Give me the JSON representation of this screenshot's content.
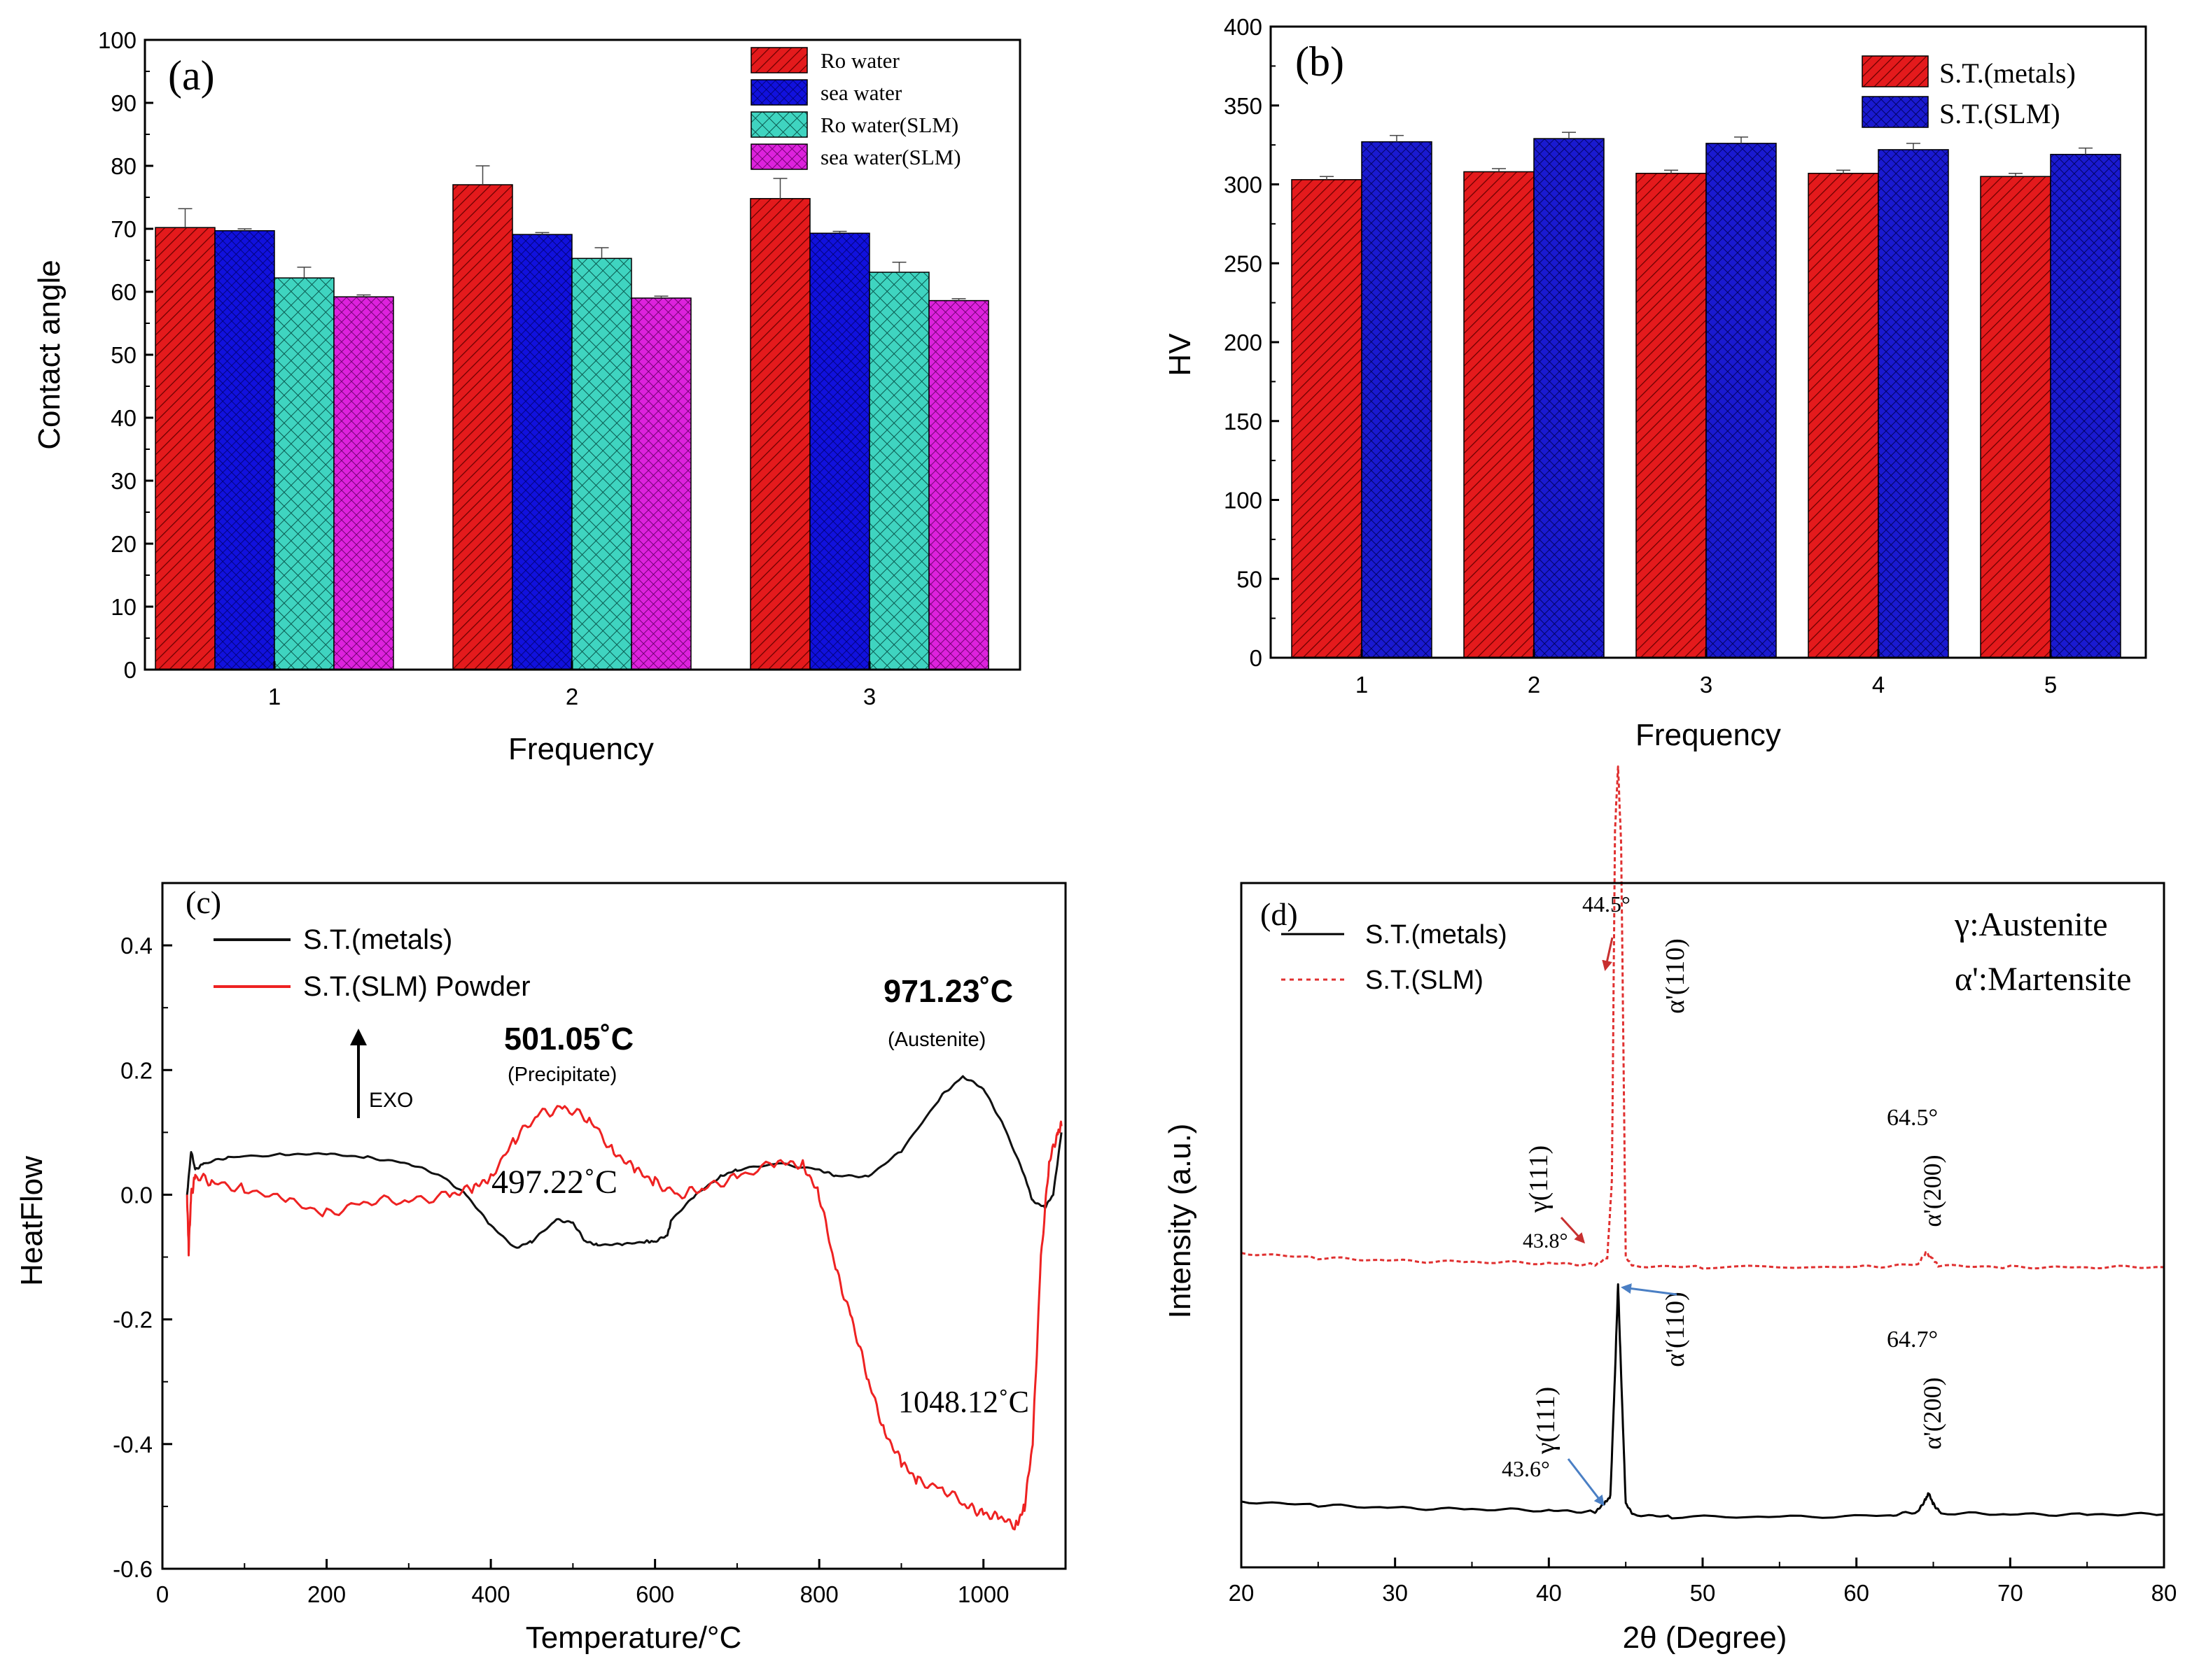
{
  "colors": {
    "red": "#e41a1c",
    "blue": "#1111dd",
    "teal": "#3fd4c0",
    "magenta": "#dd22dd",
    "dsc_black": "#111111",
    "dsc_red": "#ee2222",
    "xrd_metals": "#000000",
    "xrd_slm": "#e03030",
    "arrow_red": "#c83030",
    "arrow_blue": "#4a7fc4"
  },
  "chart_data": [
    {
      "id": "a",
      "type": "bar",
      "panel_label": "(a)",
      "title": "",
      "xlabel": "Frequency",
      "ylabel": "Contact angle",
      "ylim": [
        0,
        100
      ],
      "yticks": [
        "0",
        "10",
        "20",
        "30",
        "40",
        "50",
        "60",
        "70",
        "80",
        "90",
        "100"
      ],
      "categories": [
        "1",
        "2",
        "3"
      ],
      "legend_position": "top-right",
      "series": [
        {
          "name": "Ro water",
          "values": [
            70.2,
            77.0,
            74.8
          ],
          "errors": [
            3.0,
            3.0,
            3.2
          ]
        },
        {
          "name": "sea water",
          "values": [
            69.7,
            69.1,
            69.3
          ],
          "errors": [
            0.3,
            0.3,
            0.3
          ]
        },
        {
          "name": "Ro water(SLM)",
          "values": [
            62.2,
            65.3,
            63.1
          ],
          "errors": [
            1.7,
            1.7,
            1.6
          ]
        },
        {
          "name": "sea water(SLM)",
          "values": [
            59.2,
            59.0,
            58.6
          ],
          "errors": [
            0.3,
            0.3,
            0.3
          ]
        }
      ]
    },
    {
      "id": "b",
      "type": "bar",
      "panel_label": "(b)",
      "title": "",
      "xlabel": "Frequency",
      "ylabel": "HV",
      "ylim": [
        0,
        400
      ],
      "yticks": [
        "0",
        "50",
        "100",
        "150",
        "200",
        "250",
        "300",
        "350",
        "400"
      ],
      "categories": [
        "1",
        "2",
        "3",
        "4",
        "5"
      ],
      "legend_position": "top-right",
      "series": [
        {
          "name": "S.T.(metals)",
          "values": [
            303,
            308,
            307,
            307,
            305
          ],
          "errors": [
            2,
            2,
            2,
            2,
            2
          ]
        },
        {
          "name": "S.T.(SLM)",
          "values": [
            327,
            329,
            326,
            322,
            319
          ],
          "errors": [
            4,
            4,
            4,
            4,
            4
          ]
        }
      ]
    },
    {
      "id": "c",
      "type": "line",
      "panel_label": "(c)",
      "title": "",
      "xlabel": "Temperature/°C",
      "ylabel": "HeatFlow",
      "xlim": [
        0,
        1100
      ],
      "ylim": [
        -0.6,
        0.5
      ],
      "xticks": [
        "0",
        "200",
        "400",
        "600",
        "800",
        "1000"
      ],
      "yticks": [
        "-0.6",
        "-0.4",
        "-0.2",
        "0.0",
        "0.2",
        "0.4"
      ],
      "legend_position": "top-left",
      "series": [
        {
          "name": "S.T.(metals)",
          "x": [
            30,
            35,
            40,
            50,
            80,
            150,
            200,
            250,
            300,
            340,
            370,
            400,
            430,
            450,
            480,
            500,
            515,
            530,
            560,
            590,
            600,
            615,
            620,
            650,
            680,
            700,
            750,
            800,
            820,
            860,
            900,
            950,
            975,
            1000,
            1025,
            1050,
            1060,
            1075,
            1085,
            1095
          ],
          "y": [
            0.0,
            0.07,
            0.04,
            0.05,
            0.06,
            0.065,
            0.065,
            0.06,
            0.05,
            0.03,
            0.0,
            -0.05,
            -0.085,
            -0.075,
            -0.04,
            -0.045,
            -0.075,
            -0.08,
            -0.08,
            -0.075,
            -0.075,
            -0.065,
            -0.04,
            0.0,
            0.03,
            0.04,
            0.05,
            0.04,
            0.03,
            0.03,
            0.07,
            0.16,
            0.19,
            0.17,
            0.11,
            0.03,
            -0.01,
            -0.02,
            0.0,
            0.1
          ]
        },
        {
          "name": "S.T.(SLM) Powder",
          "x": [
            30,
            32,
            35,
            40,
            60,
            100,
            150,
            200,
            250,
            300,
            350,
            380,
            400,
            430,
            460,
            490,
            520,
            550,
            575,
            600,
            630,
            660,
            700,
            750,
            780,
            800,
            820,
            840,
            860,
            880,
            900,
            920,
            950,
            980,
            1000,
            1020,
            1040,
            1050,
            1060,
            1070,
            1080,
            1090,
            1095
          ],
          "y": [
            0.0,
            -0.09,
            0.0,
            0.03,
            0.02,
            0.01,
            -0.01,
            -0.03,
            -0.01,
            -0.01,
            0.0,
            0.01,
            0.03,
            0.09,
            0.13,
            0.14,
            0.12,
            0.07,
            0.04,
            0.02,
            0.0,
            0.01,
            0.03,
            0.05,
            0.05,
            0.0,
            -0.12,
            -0.2,
            -0.3,
            -0.38,
            -0.43,
            -0.46,
            -0.47,
            -0.5,
            -0.51,
            -0.52,
            -0.53,
            -0.5,
            -0.4,
            -0.1,
            0.05,
            0.1,
            0.11
          ]
        }
      ],
      "annotations": [
        {
          "text": "501.05˚C",
          "sub": "(Precipitate)"
        },
        {
          "text": "971.23˚C",
          "sub": "(Austenite)"
        },
        {
          "text": "497.22˚C"
        },
        {
          "text": "1048.12˚C"
        },
        {
          "text": "EXO"
        }
      ]
    },
    {
      "id": "d",
      "type": "line",
      "panel_label": "(d)",
      "title": "",
      "xlabel": "2θ (Degree)",
      "ylabel": "Intensity (a.u.)",
      "xlim": [
        20,
        80
      ],
      "xticks": [
        "20",
        "30",
        "40",
        "50",
        "60",
        "70",
        "80"
      ],
      "legend_position": "top-left",
      "phase_legend": [
        "γ:Austenite",
        "α':Martensite"
      ],
      "series": [
        {
          "name": "S.T.(metals)",
          "x": [
            20,
            25,
            30,
            35,
            40,
            43.0,
            43.6,
            44.0,
            44.3,
            44.5,
            44.7,
            45.0,
            45.5,
            48,
            55,
            62,
            64.0,
            64.5,
            64.7,
            65.0,
            65.5,
            70,
            75,
            80
          ],
          "y": [
            0.06,
            0.045,
            0.035,
            0.03,
            0.025,
            0.02,
            0.05,
            0.08,
            0.55,
            0.9,
            0.55,
            0.05,
            0.01,
            0.0,
            0.0,
            0.005,
            0.02,
            0.07,
            0.09,
            0.05,
            0.015,
            0.01,
            0.01,
            0.01
          ]
        },
        {
          "name": "S.T.(SLM)",
          "x": [
            20,
            25,
            30,
            35,
            40,
            43.0,
            43.8,
            44.1,
            44.3,
            44.5,
            44.7,
            45.0,
            45.5,
            50,
            60,
            64.0,
            64.5,
            64.8,
            65.3,
            70,
            75,
            80
          ],
          "y": [
            1.02,
            1.0,
            0.99,
            0.985,
            0.98,
            0.975,
            1.0,
            1.3,
            2.65,
            2.9,
            2.6,
            1.0,
            0.97,
            0.965,
            0.965,
            0.975,
            1.02,
            1.01,
            0.97,
            0.965,
            0.965,
            0.965
          ]
        }
      ],
      "annotations": [
        {
          "text": "44.5°"
        },
        {
          "text": "α'(110)"
        },
        {
          "text": "γ(111)"
        },
        {
          "text": "43.8°"
        },
        {
          "text": "64.5°"
        },
        {
          "text": "α'(200)"
        },
        {
          "text": "43.6°"
        },
        {
          "text": "γ(111)"
        },
        {
          "text": "α'(110)"
        },
        {
          "text": "64.7°"
        },
        {
          "text": "α'(200)"
        }
      ]
    }
  ]
}
